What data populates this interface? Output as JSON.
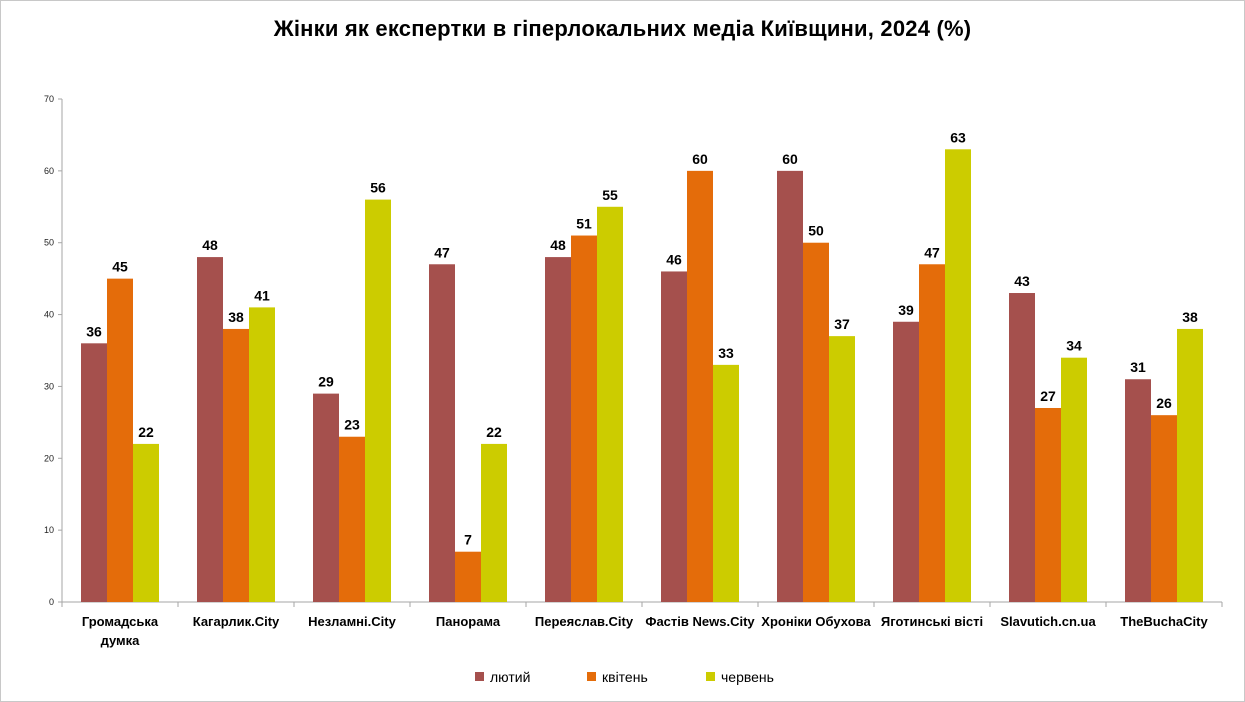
{
  "chart_data": {
    "type": "bar",
    "title": "Жінки як експертки в гіперлокальних медіа Київщини, 2024 (%)",
    "xlabel": "",
    "ylabel": "",
    "ylim": [
      0,
      70
    ],
    "yticks": [
      "0",
      "10",
      "20",
      "30",
      "40",
      "50",
      "60",
      "70"
    ],
    "grid": false,
    "legend_position": "bottom",
    "categories": [
      [
        "Громадська",
        "думка"
      ],
      [
        "Кагарлик.City"
      ],
      [
        "Незламні.City"
      ],
      [
        "Панорама"
      ],
      [
        "Переяслав.City"
      ],
      [
        "Фастів News.City"
      ],
      [
        "Хроніки Обухова"
      ],
      [
        "Яготинські вісті"
      ],
      [
        "Slavutich.cn.ua"
      ],
      [
        "TheBuchaCity"
      ]
    ],
    "series": [
      {
        "name": "лютий",
        "color": "#a5504d",
        "values": [
          36,
          48,
          29,
          47,
          48,
          46,
          60,
          39,
          43,
          31
        ]
      },
      {
        "name": "квітень",
        "color": "#e46c0a",
        "values": [
          45,
          38,
          23,
          7,
          51,
          60,
          50,
          47,
          27,
          26
        ]
      },
      {
        "name": "червень",
        "color": "#cccc00",
        "values": [
          22,
          41,
          56,
          22,
          55,
          33,
          37,
          63,
          34,
          38
        ]
      }
    ]
  }
}
